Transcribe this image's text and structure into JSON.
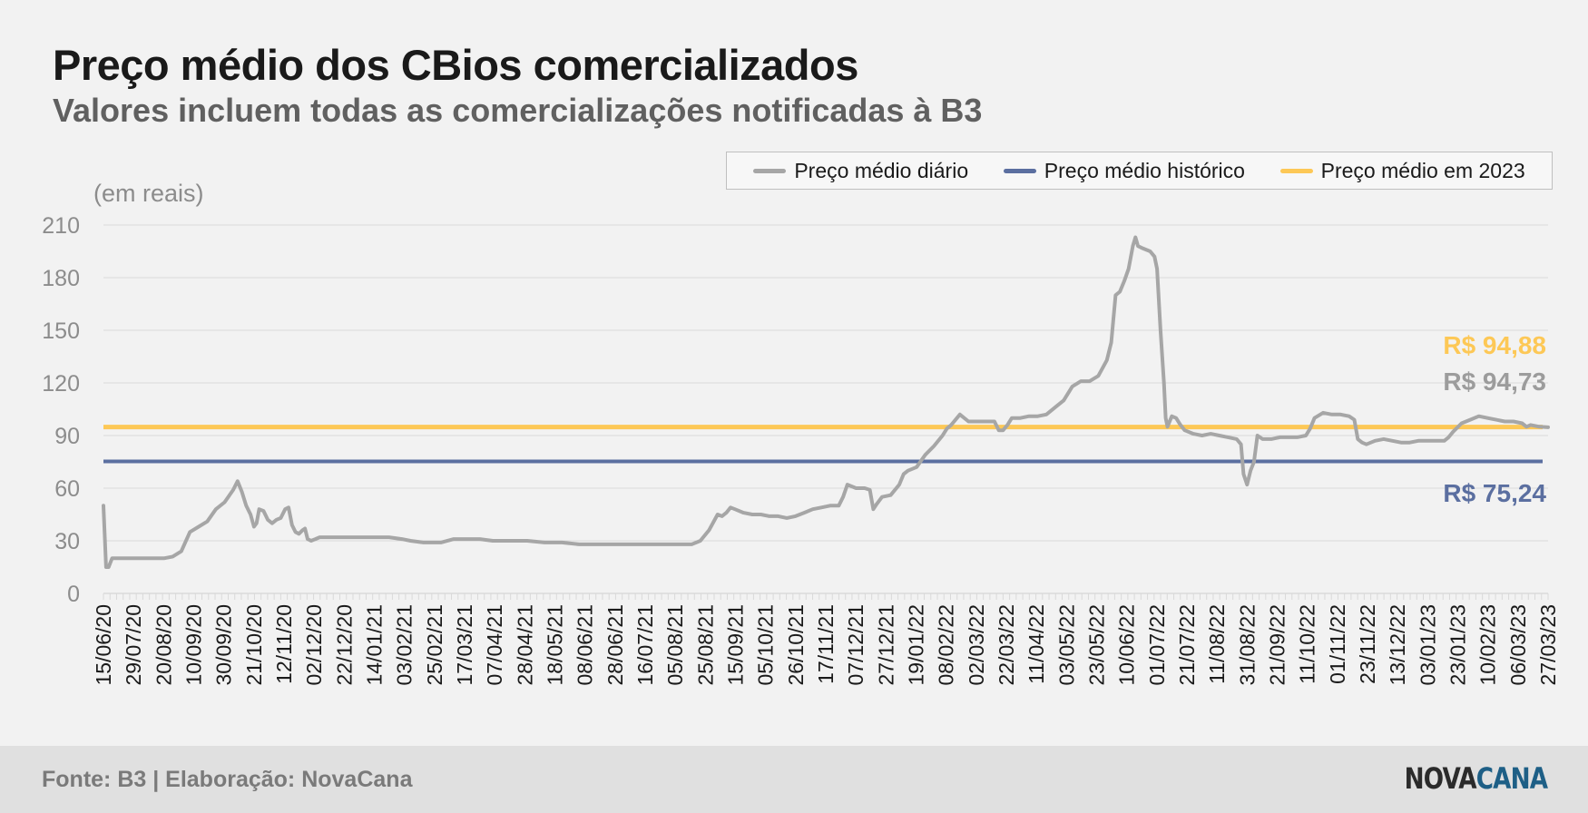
{
  "header": {
    "title": "Preço médio dos CBios comercializados",
    "subtitle": "Valores incluem todas as comercializações notificadas à B3"
  },
  "legend": [
    {
      "label": "Preço médio diário",
      "color": "#a6a6a6"
    },
    {
      "label": "Preço médio histórico",
      "color": "#5b6fa0"
    },
    {
      "label": "Preço médio em 2023",
      "color": "#fdc856"
    }
  ],
  "footer": {
    "source": "Fonte: B3 | Elaboração: NovaCana",
    "logo_part1": "NOVA",
    "logo_part2": "CANA"
  },
  "chart_data": {
    "type": "line",
    "ylabel": "(em reais)",
    "ylim": [
      0,
      210
    ],
    "yticks": [
      0,
      30,
      60,
      90,
      120,
      150,
      180,
      210
    ],
    "grid": true,
    "legend_position": "top-right",
    "x_tick_labels": [
      "15/06/20",
      "29/07/20",
      "20/08/20",
      "10/09/20",
      "30/09/20",
      "21/10/20",
      "12/11/20",
      "02/12/20",
      "22/12/20",
      "14/01/21",
      "03/02/21",
      "25/02/21",
      "17/03/21",
      "07/04/21",
      "28/04/21",
      "18/05/21",
      "08/06/21",
      "28/06/21",
      "16/07/21",
      "05/08/21",
      "25/08/21",
      "15/09/21",
      "05/10/21",
      "26/10/21",
      "17/11/21",
      "07/12/21",
      "27/12/21",
      "19/01/22",
      "08/02/22",
      "02/03/22",
      "22/03/22",
      "11/04/22",
      "03/05/22",
      "23/05/22",
      "10/06/22",
      "01/07/22",
      "21/07/22",
      "11/08/22",
      "31/08/22",
      "21/09/22",
      "11/10/22",
      "01/11/22",
      "23/11/22",
      "13/12/22",
      "03/01/23",
      "23/01/23",
      "10/02/23",
      "06/03/23",
      "27/03/23"
    ],
    "series": [
      {
        "name": "Preço médio diário",
        "color": "#a6a6a6",
        "end_label": "R$ 94,73",
        "points": [
          [
            0,
            50
          ],
          [
            0.3,
            15
          ],
          [
            0.6,
            15
          ],
          [
            1,
            20
          ],
          [
            2,
            20
          ],
          [
            3,
            20
          ],
          [
            4,
            20
          ],
          [
            5,
            20
          ],
          [
            6,
            20
          ],
          [
            7,
            20
          ],
          [
            8,
            21
          ],
          [
            9,
            24
          ],
          [
            10,
            35
          ],
          [
            11,
            38
          ],
          [
            12,
            41
          ],
          [
            13,
            48
          ],
          [
            14,
            52
          ],
          [
            15,
            59
          ],
          [
            15.5,
            64
          ],
          [
            16,
            58
          ],
          [
            16.5,
            50
          ],
          [
            17,
            45
          ],
          [
            17.4,
            38
          ],
          [
            17.7,
            40
          ],
          [
            18,
            48
          ],
          [
            18.5,
            47
          ],
          [
            19,
            42
          ],
          [
            19.5,
            40
          ],
          [
            20,
            42
          ],
          [
            20.5,
            43
          ],
          [
            21,
            48
          ],
          [
            21.4,
            49
          ],
          [
            21.8,
            39
          ],
          [
            22.2,
            35
          ],
          [
            22.6,
            34
          ],
          [
            23,
            36
          ],
          [
            23.3,
            37
          ],
          [
            23.6,
            31
          ],
          [
            24,
            30
          ],
          [
            24.5,
            31
          ],
          [
            25,
            32
          ],
          [
            27,
            32
          ],
          [
            29,
            32
          ],
          [
            31,
            32
          ],
          [
            33,
            32
          ],
          [
            34.5,
            31
          ],
          [
            35.5,
            30
          ],
          [
            37,
            29
          ],
          [
            39,
            29
          ],
          [
            40.5,
            31
          ],
          [
            42,
            31
          ],
          [
            43.5,
            31
          ],
          [
            45,
            30
          ],
          [
            47,
            30
          ],
          [
            49,
            30
          ],
          [
            51,
            29
          ],
          [
            53,
            29
          ],
          [
            55,
            28
          ],
          [
            57,
            28
          ],
          [
            60,
            28
          ],
          [
            63,
            28
          ],
          [
            66,
            28
          ],
          [
            68,
            28
          ],
          [
            69,
            30
          ],
          [
            70,
            36
          ],
          [
            71,
            45
          ],
          [
            71.5,
            44
          ],
          [
            72,
            46
          ],
          [
            72.5,
            49
          ],
          [
            73,
            48
          ],
          [
            74,
            46
          ],
          [
            75,
            45
          ],
          [
            76,
            45
          ],
          [
            77,
            44
          ],
          [
            78,
            44
          ],
          [
            79,
            43
          ],
          [
            80,
            44
          ],
          [
            81,
            46
          ],
          [
            82,
            48
          ],
          [
            83,
            49
          ],
          [
            84,
            50
          ],
          [
            85,
            50
          ],
          [
            85.5,
            55
          ],
          [
            86,
            62
          ],
          [
            87,
            60
          ],
          [
            88,
            60
          ],
          [
            88.6,
            59
          ],
          [
            89,
            48
          ],
          [
            89.4,
            51
          ],
          [
            90,
            55
          ],
          [
            91,
            56
          ],
          [
            92,
            62
          ],
          [
            92.5,
            68
          ],
          [
            93,
            70
          ],
          [
            94,
            72
          ],
          [
            95,
            79
          ],
          [
            96,
            84
          ],
          [
            97,
            90
          ],
          [
            97.5,
            94
          ],
          [
            98,
            96
          ],
          [
            99,
            102
          ],
          [
            100,
            98
          ],
          [
            101,
            98
          ],
          [
            102,
            98
          ],
          [
            103,
            98
          ],
          [
            103.5,
            93
          ],
          [
            104,
            93
          ],
          [
            104.5,
            96
          ],
          [
            105,
            100
          ],
          [
            106,
            100
          ],
          [
            107,
            101
          ],
          [
            108,
            101
          ],
          [
            109,
            102
          ],
          [
            110,
            106
          ],
          [
            111,
            110
          ],
          [
            112,
            118
          ],
          [
            113,
            121
          ],
          [
            114,
            121
          ],
          [
            115,
            124
          ],
          [
            116,
            133
          ],
          [
            116.5,
            143
          ],
          [
            117,
            170
          ],
          [
            117.5,
            172
          ],
          [
            118,
            178
          ],
          [
            118.5,
            185
          ],
          [
            119,
            198
          ],
          [
            119.3,
            203
          ],
          [
            119.6,
            198
          ],
          [
            120,
            197
          ],
          [
            121,
            195
          ],
          [
            121.5,
            192
          ],
          [
            121.8,
            185
          ],
          [
            122.2,
            150
          ],
          [
            122.6,
            120
          ],
          [
            122.8,
            100
          ],
          [
            123,
            95
          ],
          [
            123.5,
            101
          ],
          [
            124,
            100
          ],
          [
            124.5,
            96
          ],
          [
            125,
            93
          ],
          [
            126,
            91
          ],
          [
            127,
            90
          ],
          [
            128,
            91
          ],
          [
            129,
            90
          ],
          [
            130,
            89
          ],
          [
            131,
            88
          ],
          [
            131.5,
            85
          ],
          [
            131.8,
            68
          ],
          [
            132.2,
            62
          ],
          [
            132.6,
            70
          ],
          [
            133,
            75
          ],
          [
            133.4,
            90
          ],
          [
            134,
            88
          ],
          [
            135,
            88
          ],
          [
            136,
            89
          ],
          [
            137,
            89
          ],
          [
            138,
            89
          ],
          [
            139,
            90
          ],
          [
            139.5,
            94
          ],
          [
            140,
            100
          ],
          [
            141,
            103
          ],
          [
            142,
            102
          ],
          [
            143,
            102
          ],
          [
            144,
            101
          ],
          [
            144.6,
            99
          ],
          [
            145,
            88
          ],
          [
            145.5,
            86
          ],
          [
            146,
            85
          ],
          [
            147,
            87
          ],
          [
            148,
            88
          ],
          [
            149,
            87
          ],
          [
            150,
            86
          ],
          [
            151,
            86
          ],
          [
            152,
            87
          ],
          [
            153,
            87
          ],
          [
            154,
            87
          ],
          [
            155,
            87
          ],
          [
            155.5,
            89
          ],
          [
            156,
            92
          ],
          [
            157,
            97
          ],
          [
            158,
            99
          ],
          [
            159,
            101
          ],
          [
            160,
            100
          ],
          [
            161,
            99
          ],
          [
            162,
            98
          ],
          [
            163,
            98
          ],
          [
            164,
            97
          ],
          [
            164.5,
            95
          ],
          [
            165,
            96
          ],
          [
            166,
            95
          ],
          [
            167,
            94.7
          ]
        ]
      },
      {
        "name": "Preço médio histórico",
        "color": "#5b6fa0",
        "value": 75.24,
        "end_label": "R$ 75,24"
      },
      {
        "name": "Preço médio em 2023",
        "color": "#fdc856",
        "value": 94.88,
        "end_label": "R$ 94,88"
      }
    ]
  }
}
